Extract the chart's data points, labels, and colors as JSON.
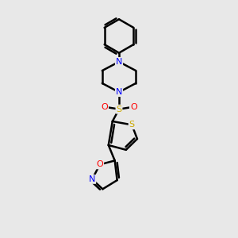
{
  "background_color": "#e8e8e8",
  "bond_color": "#000000",
  "bond_width": 1.8,
  "atom_colors": {
    "N": "#0000ff",
    "O": "#ff0000",
    "S": "#ccaa00",
    "C": "#000000"
  },
  "figsize": [
    3.0,
    3.0
  ],
  "dpi": 100
}
